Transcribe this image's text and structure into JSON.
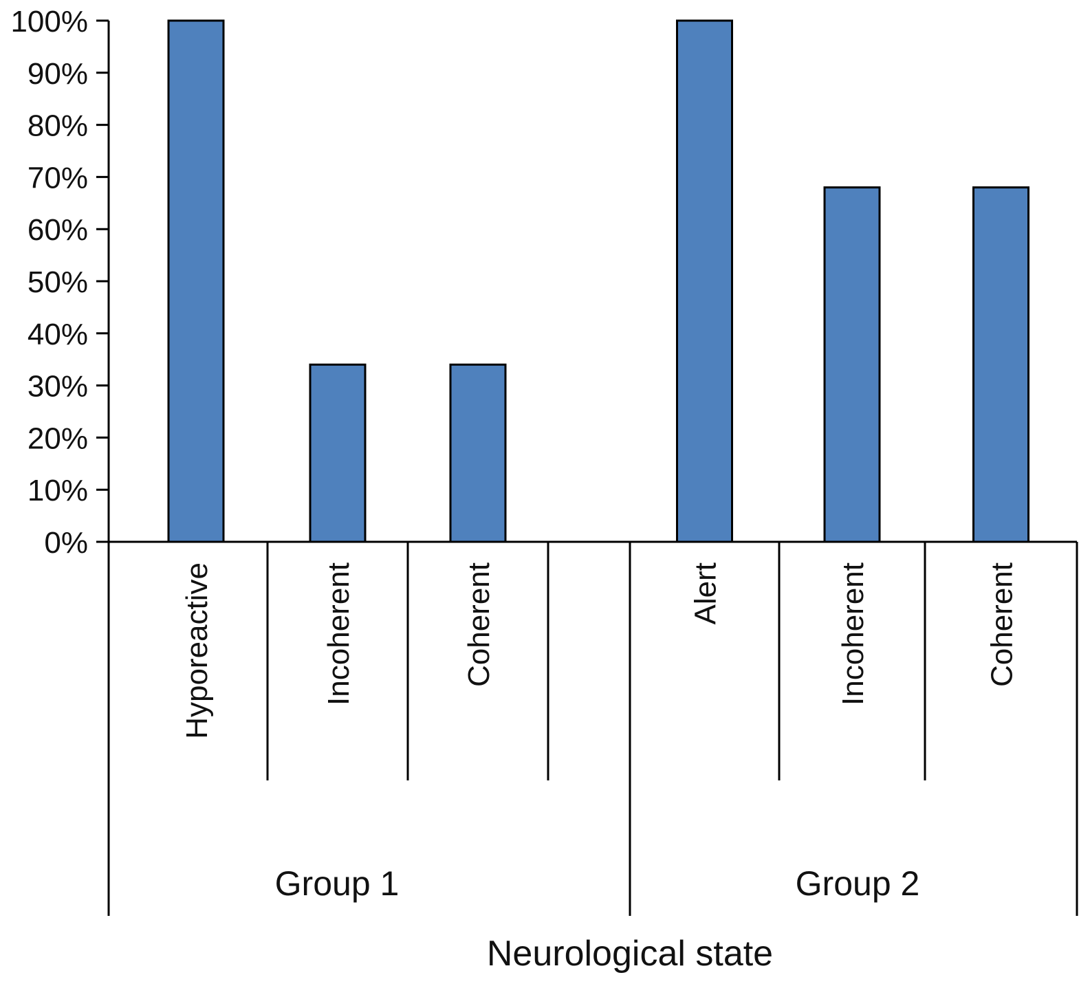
{
  "chart_data": {
    "type": "bar",
    "title": "",
    "xlabel": "Neurological state",
    "ylabel": "",
    "ylim": [
      0,
      100
    ],
    "yticks": [
      "0%",
      "10%",
      "20%",
      "30%",
      "40%",
      "50%",
      "60%",
      "70%",
      "80%",
      "90%",
      "100%"
    ],
    "groups": [
      {
        "name": "Group 1",
        "categories": [
          "Hyporeactive",
          "Incoherent",
          "Coherent",
          ""
        ],
        "values": [
          100,
          34,
          34,
          null
        ]
      },
      {
        "name": "Group 2",
        "categories": [
          "Alert",
          "Incoherent",
          "Coherent"
        ],
        "values": [
          100,
          68,
          68
        ]
      }
    ],
    "bar_color": "#4f81bd",
    "grid": false,
    "legend": "none"
  }
}
